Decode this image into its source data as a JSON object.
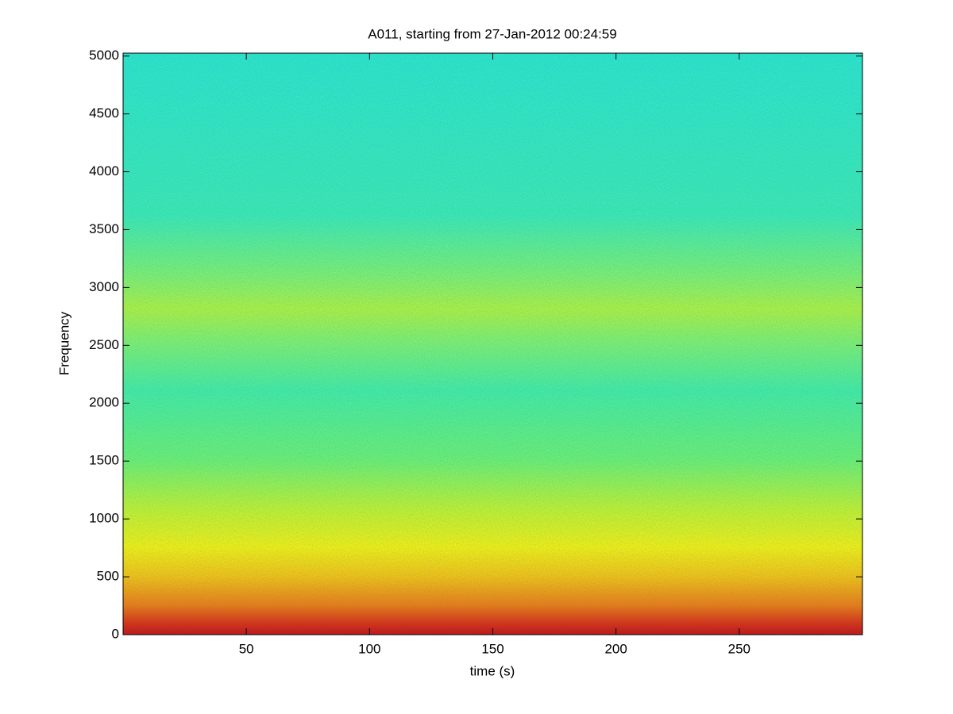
{
  "chart_data": {
    "type": "spectrogram",
    "title": "A011, starting from 27-Jan-2012 00:24:59",
    "x_label": "time (s)",
    "y_label": "Frequency",
    "xlim": [
      0,
      300
    ],
    "ylim": [
      0,
      5025
    ],
    "xticks": [
      50,
      100,
      150,
      200,
      250
    ],
    "yticks": [
      0,
      500,
      1000,
      1500,
      2000,
      2500,
      3000,
      3500,
      4000,
      4500,
      5000
    ]
  }
}
